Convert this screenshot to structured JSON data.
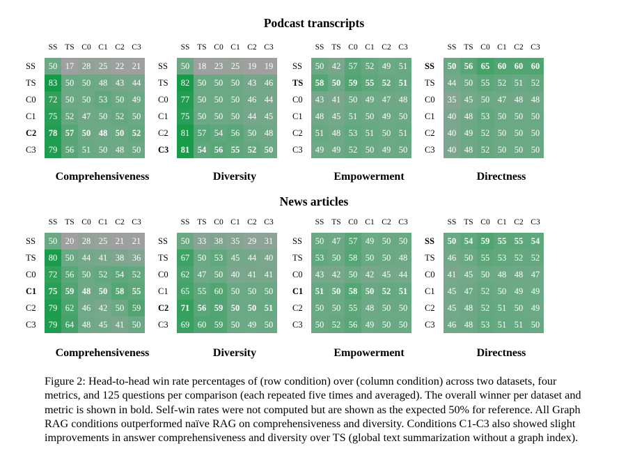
{
  "sections": [
    {
      "title": "Podcast transcripts",
      "charts": [
        {
          "metric": "Comprehensiveness",
          "bold_row": 4,
          "values": [
            [
              50,
              17,
              28,
              25,
              22,
              21
            ],
            [
              83,
              50,
              50,
              48,
              43,
              44
            ],
            [
              72,
              50,
              50,
              53,
              50,
              49
            ],
            [
              75,
              52,
              47,
              50,
              52,
              50
            ],
            [
              78,
              57,
              50,
              48,
              50,
              52
            ],
            [
              79,
              56,
              51,
              50,
              48,
              50
            ]
          ]
        },
        {
          "metric": "Diversity",
          "bold_row": 5,
          "values": [
            [
              50,
              18,
              23,
              25,
              19,
              19
            ],
            [
              82,
              50,
              50,
              50,
              43,
              46
            ],
            [
              77,
              50,
              50,
              50,
              46,
              44
            ],
            [
              75,
              50,
              50,
              50,
              44,
              45
            ],
            [
              81,
              57,
              54,
              56,
              50,
              48
            ],
            [
              81,
              54,
              56,
              55,
              52,
              50
            ]
          ]
        },
        {
          "metric": "Empowerment",
          "bold_row": 1,
          "values": [
            [
              50,
              42,
              57,
              52,
              49,
              51
            ],
            [
              58,
              50,
              59,
              55,
              52,
              51
            ],
            [
              43,
              41,
              50,
              49,
              47,
              48
            ],
            [
              48,
              45,
              51,
              50,
              49,
              50
            ],
            [
              51,
              48,
              53,
              51,
              50,
              51
            ],
            [
              49,
              49,
              52,
              50,
              49,
              50
            ]
          ]
        },
        {
          "metric": "Directness",
          "bold_row": 0,
          "values": [
            [
              50,
              56,
              65,
              60,
              60,
              60
            ],
            [
              44,
              50,
              55,
              52,
              51,
              52
            ],
            [
              35,
              45,
              50,
              47,
              48,
              48
            ],
            [
              40,
              48,
              53,
              50,
              50,
              50
            ],
            [
              40,
              49,
              52,
              50,
              50,
              50
            ],
            [
              40,
              48,
              52,
              50,
              50,
              50
            ]
          ]
        }
      ]
    },
    {
      "title": "News articles",
      "charts": [
        {
          "metric": "Comprehensiveness",
          "bold_row": 3,
          "values": [
            [
              50,
              20,
              28,
              25,
              21,
              21
            ],
            [
              80,
              50,
              44,
              41,
              38,
              36
            ],
            [
              72,
              56,
              50,
              52,
              54,
              52
            ],
            [
              75,
              59,
              48,
              50,
              58,
              55
            ],
            [
              79,
              62,
              46,
              42,
              50,
              59
            ],
            [
              79,
              64,
              48,
              45,
              41,
              50
            ]
          ]
        },
        {
          "metric": "Diversity",
          "bold_row": 4,
          "values": [
            [
              50,
              33,
              38,
              35,
              29,
              31
            ],
            [
              67,
              50,
              53,
              45,
              44,
              40
            ],
            [
              62,
              47,
              50,
              40,
              41,
              41
            ],
            [
              65,
              55,
              60,
              50,
              50,
              50
            ],
            [
              71,
              56,
              59,
              50,
              50,
              51
            ],
            [
              69,
              60,
              59,
              50,
              49,
              50
            ]
          ]
        },
        {
          "metric": "Empowerment",
          "bold_row": 3,
          "values": [
            [
              50,
              47,
              57,
              49,
              50,
              50
            ],
            [
              53,
              50,
              58,
              50,
              50,
              48
            ],
            [
              43,
              42,
              50,
              42,
              45,
              44
            ],
            [
              51,
              50,
              58,
              50,
              52,
              51
            ],
            [
              50,
              50,
              55,
              48,
              50,
              50
            ],
            [
              50,
              52,
              56,
              49,
              50,
              50
            ]
          ]
        },
        {
          "metric": "Directness",
          "bold_row": 0,
          "values": [
            [
              50,
              54,
              59,
              55,
              55,
              54
            ],
            [
              46,
              50,
              55,
              53,
              52,
              52
            ],
            [
              41,
              45,
              50,
              48,
              48,
              47
            ],
            [
              45,
              47,
              52,
              50,
              49,
              49
            ],
            [
              45,
              48,
              52,
              51,
              50,
              49
            ],
            [
              46,
              48,
              53,
              51,
              51,
              50
            ]
          ]
        }
      ]
    }
  ],
  "labels": [
    "SS",
    "TS",
    "C0",
    "C1",
    "C2",
    "C3"
  ],
  "colors": {
    "low": "#a0a0a0",
    "mid": "#6aa984",
    "high": "#0e9a43"
  },
  "caption": "Figure 2: Head-to-head win rate percentages of (row condition) over (column condition) across two datasets, four metrics, and 125 questions per comparison (each repeated five times and averaged). The overall winner per dataset and metric is shown in bold. Self-win rates were not computed but are shown as the expected 50% for reference. All Graph RAG conditions outperformed naïve RAG on comprehensiveness and diversity. Conditions C1-C3 also showed slight improvements in answer comprehensiveness and diversity over TS (global text summarization without a graph index)."
}
